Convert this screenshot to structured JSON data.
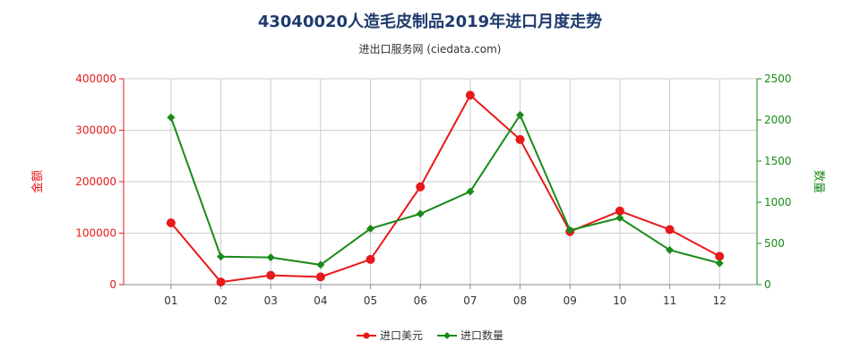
{
  "title": "43040020人造毛皮制品2019年进口月度走势",
  "subtitle": "进出口服务网 (ciedata.com)",
  "colors": {
    "value_series": "#e8191a",
    "quantity_series": "#1a8a1a",
    "grid": "#cccccc",
    "title": "#1f3b6e"
  },
  "chart_data": {
    "type": "line",
    "categories": [
      "01",
      "02",
      "03",
      "04",
      "05",
      "06",
      "07",
      "08",
      "09",
      "10",
      "11",
      "12"
    ],
    "y_left": {
      "label": "金额",
      "ylim": [
        0,
        400000
      ],
      "ticks": [
        0,
        100000,
        200000,
        300000,
        400000
      ]
    },
    "y_right": {
      "label": "数量",
      "ylim": [
        0,
        2500
      ],
      "ticks": [
        0,
        500,
        1000,
        1500,
        2000,
        2500
      ]
    },
    "series": [
      {
        "name": "进口美元",
        "axis": "left",
        "values": [
          120000,
          5000,
          18000,
          15000,
          49000,
          190000,
          368000,
          282000,
          103000,
          143000,
          107000,
          55000
        ]
      },
      {
        "name": "进口数量",
        "axis": "right",
        "values": [
          2030,
          340,
          330,
          240,
          680,
          860,
          1130,
          2060,
          660,
          810,
          420,
          260
        ]
      }
    ],
    "grid": true,
    "legend": "bottom-center"
  }
}
